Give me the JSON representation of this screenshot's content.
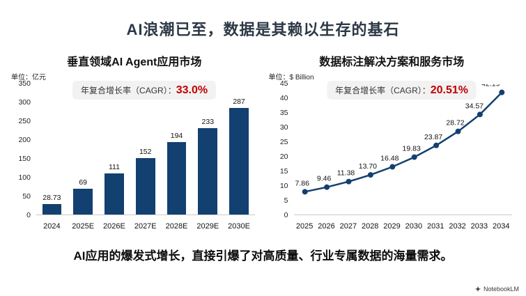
{
  "page": {
    "title": "AI浪潮已至，数据是其赖以生存的基石",
    "footnote": "AI应用的爆发式增长，直接引爆了对高质量、行业专属数据的海量需求。",
    "watermark": "NotebookLM"
  },
  "colors": {
    "series_navy": "#124070",
    "cagr_red": "#c00000",
    "title_dark": "#2c3845",
    "badge_bg": "#f2f2f2",
    "baseline_gray": "#c9c9c9"
  },
  "chart_data": [
    {
      "type": "bar",
      "title": "垂直领域AI Agent应用市场",
      "unit_label": "单位：亿元",
      "cagr_label": "年复合增长率（CAGR）：",
      "cagr_value": "33.0%",
      "categories": [
        "2024",
        "2025E",
        "2026E",
        "2027E",
        "2028E",
        "2029E",
        "2030E"
      ],
      "values": [
        28.73,
        69,
        111,
        152,
        194,
        233,
        287
      ],
      "value_labels": [
        "28.73",
        "69",
        "111",
        "152",
        "194",
        "233",
        "287"
      ],
      "ylim": [
        0,
        350
      ],
      "yticks": [
        350,
        300,
        250,
        200,
        150,
        100,
        50,
        0
      ],
      "grid": false,
      "legend": "none"
    },
    {
      "type": "line",
      "title": "数据标注解决方案和服务市场",
      "unit_label": "单位：$ Billion",
      "cagr_label": "年复合增长率（CAGR）：",
      "cagr_value": "20.51%",
      "categories": [
        "2025",
        "2026",
        "2027",
        "2028",
        "2029",
        "2030",
        "2031",
        "2032",
        "2033",
        "2034"
      ],
      "values": [
        7.86,
        9.46,
        11.38,
        13.7,
        16.48,
        19.83,
        23.87,
        28.72,
        34.57,
        42.19
      ],
      "value_labels": [
        "7.86",
        "9.46",
        "11.38",
        "13.70",
        "16.48",
        "19.83",
        "23.87",
        "28.72",
        "34.57",
        "42.19"
      ],
      "ylim": [
        0,
        45
      ],
      "yticks": [
        45,
        40,
        35,
        30,
        25,
        20,
        15,
        10,
        5,
        0
      ],
      "grid": false,
      "legend": "none"
    }
  ]
}
